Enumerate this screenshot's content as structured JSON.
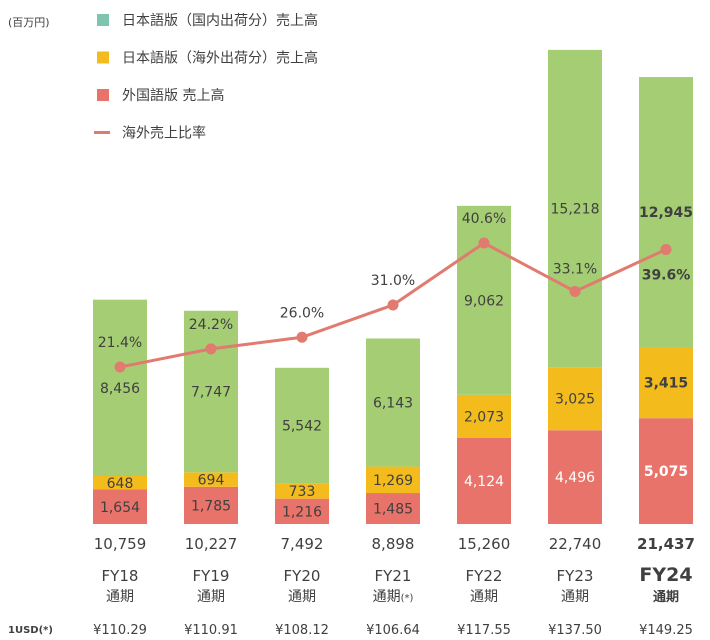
{
  "unit_label": "(百万円)",
  "legend": [
    {
      "label": "日本語版（国内出荷分）売上高",
      "color": "#7ec4ae",
      "shape": "square"
    },
    {
      "label": "日本語版（海外出荷分）売上高",
      "color": "#f3bc1c",
      "shape": "square"
    },
    {
      "label": "外国語版 売上高",
      "color": "#e8736a",
      "shape": "square"
    },
    {
      "label": "海外売上比率",
      "color": "#e17a6f",
      "shape": "line"
    }
  ],
  "fx_label": "1USD",
  "fx_label_mark": "(*)",
  "period_suffix": "通期",
  "colors": {
    "domestic": "#a5cd73",
    "overseas_jp": "#f3bc1c",
    "foreign": "#e8736a",
    "ratio_line": "#e17a6f",
    "text": "#404040"
  },
  "chart_data": {
    "type": "bar",
    "stacked": true,
    "categories": [
      "FY18",
      "FY19",
      "FY20",
      "FY21",
      "FY22",
      "FY23",
      "FY24"
    ],
    "category_marks": [
      "",
      "",
      "",
      "(*)",
      "",
      "",
      ""
    ],
    "highlight_index": 6,
    "series": [
      {
        "name": "外国語版 売上高",
        "key": "foreign",
        "values": [
          "1,654",
          "1,785",
          "1,216",
          "1,485",
          "4,124",
          "4,496",
          "5,075"
        ]
      },
      {
        "name": "日本語版（海外出荷分）売上高",
        "key": "overseas_jp",
        "values": [
          "648",
          "694",
          "733",
          "1,269",
          "2,073",
          "3,025",
          "3,415"
        ]
      },
      {
        "name": "日本語版（国内出荷分）売上高",
        "key": "domestic",
        "values": [
          "8,456",
          "7,747",
          "5,542",
          "6,143",
          "9,062",
          "15,218",
          "12,945"
        ]
      }
    ],
    "totals": [
      "10,759",
      "10,227",
      "7,492",
      "8,898",
      "15,260",
      "22,740",
      "21,437"
    ],
    "line": {
      "name": "海外売上比率",
      "values": [
        "21.4%",
        "24.2%",
        "26.0%",
        "31.0%",
        "40.6%",
        "33.1%",
        "39.6%"
      ]
    },
    "fx_rates": [
      "¥110.29",
      "¥110.91",
      "¥108.12",
      "¥106.64",
      "¥117.55",
      "¥137.50",
      "¥149.25"
    ],
    "ylim": [
      0,
      23500
    ]
  }
}
